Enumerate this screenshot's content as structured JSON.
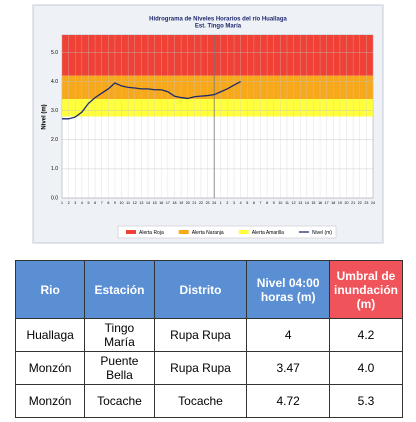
{
  "chart_data": {
    "type": "line",
    "title": "Hidrograma de Niveles Horarios del río Huallaga",
    "subtitle": "Est. Tingo María",
    "y_label": "Nivel (m)",
    "categories": [
      "1",
      "2",
      "3",
      "4",
      "5",
      "6",
      "7",
      "8",
      "9",
      "10",
      "11",
      "12",
      "13",
      "14",
      "15",
      "16",
      "17",
      "18",
      "19",
      "20",
      "21",
      "22",
      "23",
      "24",
      "1",
      "2",
      "3",
      "4",
      "5",
      "6",
      "7",
      "8",
      "9",
      "10",
      "11",
      "12",
      "13",
      "14",
      "15",
      "16",
      "17",
      "18",
      "19",
      "20",
      "21",
      "22",
      "23",
      "24"
    ],
    "series": [
      {
        "name": "Nivel (m)",
        "color": "#1f2a6e",
        "values": [
          2.72,
          2.72,
          2.78,
          2.95,
          3.25,
          3.45,
          3.6,
          3.75,
          3.95,
          3.85,
          3.8,
          3.78,
          3.75,
          3.75,
          3.72,
          3.72,
          3.65,
          3.5,
          3.45,
          3.42,
          3.48,
          3.5,
          3.52,
          3.55,
          3.65,
          3.75,
          3.88,
          4.0,
          null,
          null,
          null,
          null,
          null,
          null,
          null,
          null,
          null,
          null,
          null,
          null,
          null,
          null,
          null,
          null,
          null,
          null,
          null,
          null
        ]
      }
    ],
    "bands": [
      {
        "name": "Alerta Roja",
        "color": "#ef4136",
        "from": 4.2,
        "to": 5.6
      },
      {
        "name": "Alerta Naranja",
        "color": "#f7a81b",
        "from": 3.4,
        "to": 4.2
      },
      {
        "name": "Alerta Amarilla",
        "color": "#ffff3c",
        "from": 2.8,
        "to": 3.4
      }
    ],
    "marker_category": 23,
    "ylim": [
      0,
      5.6
    ],
    "yticks": [
      {
        "value": 0,
        "label": "0.0"
      },
      {
        "value": 1,
        "label": "1.0"
      },
      {
        "value": 2,
        "label": "2.0"
      },
      {
        "value": 3,
        "label": "3.0"
      },
      {
        "value": 4,
        "label": "4.0"
      },
      {
        "value": 5,
        "label": "5.0"
      }
    ],
    "grid": true
  },
  "table": {
    "headers": [
      "Rio",
      "Estación",
      "Distrito",
      "Nivel 04:00 horas (m)",
      "Umbral de inundación (m)"
    ],
    "rows": [
      [
        "Huallaga",
        "Tingo María",
        "Rupa Rupa",
        "4",
        "4.2"
      ],
      [
        "Monzón",
        "Puente Bella",
        "Rupa Rupa",
        "3.47",
        "4.0"
      ],
      [
        "Monzón",
        "Tocache",
        "Tocache",
        "4.72",
        "5.3"
      ]
    ]
  }
}
